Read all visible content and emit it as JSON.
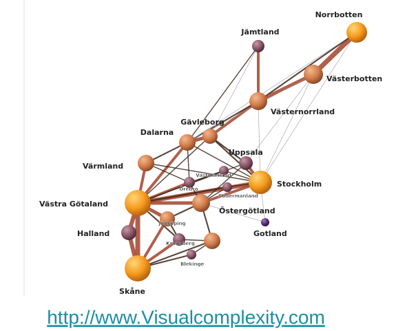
{
  "nodes": [
    {
      "label": "Norrbotten"
    },
    {
      "label": "Jämtland"
    },
    {
      "label": "Västerbotten"
    },
    {
      "label": "Västernorrland"
    },
    {
      "label": "Gävleborg"
    },
    {
      "label": "Dalarna"
    },
    {
      "label": "Uppsala"
    },
    {
      "label": "Värmland"
    },
    {
      "label": "Stockholm"
    },
    {
      "label": "Västmanland"
    },
    {
      "label": "Örebro"
    },
    {
      "label": "Södermanland"
    },
    {
      "label": "Östergötland"
    },
    {
      "label": "Västra Götaland"
    },
    {
      "label": "Gotland"
    },
    {
      "label": "Jönköping"
    },
    {
      "label": "Halland"
    },
    {
      "label": "Kronoberg"
    },
    {
      "label": "Kalmar"
    },
    {
      "label": "Blekinge"
    },
    {
      "label": "Skåne"
    }
  ],
  "link": {
    "text": "http://www.Visualcomplexity.com"
  }
}
